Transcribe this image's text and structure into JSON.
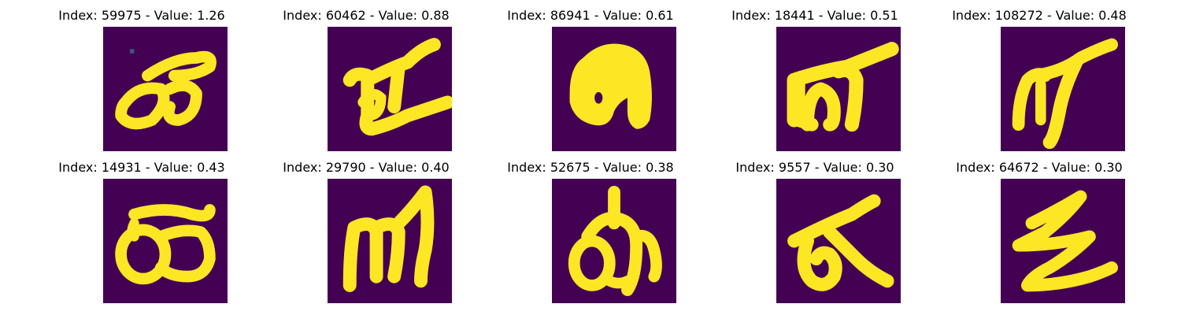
{
  "chart_data": {
    "type": "image_grid",
    "rows": 2,
    "cols": 5,
    "colormap": "viridis",
    "background_color": "#440154",
    "stroke_color": "#fde725",
    "panels": [
      {
        "title": "Index: 59975 - Value: 1.26",
        "index": 59975,
        "value": 1.26,
        "glyph": "character-59975"
      },
      {
        "title": "Index: 60462 - Value: 0.88",
        "index": 60462,
        "value": 0.88,
        "glyph": "character-60462"
      },
      {
        "title": "Index: 86941 - Value: 0.61",
        "index": 86941,
        "value": 0.61,
        "glyph": "character-86941"
      },
      {
        "title": "Index: 18441 - Value: 0.51",
        "index": 18441,
        "value": 0.51,
        "glyph": "character-18441"
      },
      {
        "title": "Index: 108272 - Value: 0.48",
        "index": 108272,
        "value": 0.48,
        "glyph": "character-108272"
      },
      {
        "title": "Index: 14931 - Value: 0.43",
        "index": 14931,
        "value": 0.43,
        "glyph": "character-14931"
      },
      {
        "title": "Index: 29790 - Value: 0.40",
        "index": 29790,
        "value": 0.4,
        "glyph": "character-29790"
      },
      {
        "title": "Index: 52675 - Value: 0.38",
        "index": 52675,
        "value": 0.38,
        "glyph": "character-52675"
      },
      {
        "title": "Index: 9557 - Value: 0.30",
        "index": 9557,
        "value": 0.3,
        "glyph": "character-9557"
      },
      {
        "title": "Index: 64672 - Value: 0.30",
        "index": 64672,
        "value": 0.3,
        "glyph": "character-64672"
      }
    ]
  }
}
